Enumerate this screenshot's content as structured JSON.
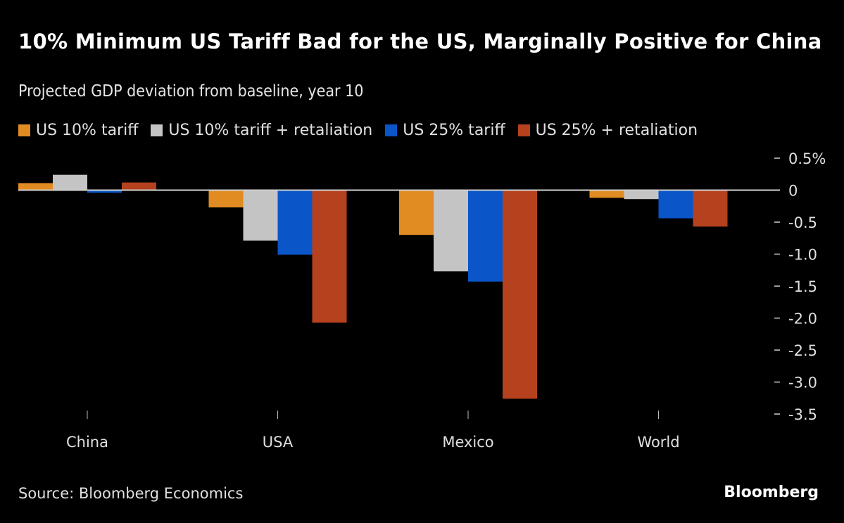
{
  "chart_data": {
    "type": "bar",
    "title": "10% Minimum US Tariff Bad for the US, Marginally Positive for China",
    "subtitle": "Projected GDP deviation from baseline, year 10",
    "categories": [
      "China",
      "USA",
      "Mexico",
      "World"
    ],
    "series": [
      {
        "name": "US 10% tariff",
        "color": "#e08c22",
        "values": [
          0.11,
          -0.27,
          -0.7,
          -0.12
        ]
      },
      {
        "name": "US 10% tariff + retaliation",
        "color": "#c4c4c4",
        "values": [
          0.24,
          -0.79,
          -1.27,
          -0.14
        ]
      },
      {
        "name": "US 25% tariff",
        "color": "#0a55c8",
        "values": [
          -0.04,
          -1.01,
          -1.43,
          -0.44
        ]
      },
      {
        "name": "US 25% + retaliation",
        "color": "#b5411e",
        "values": [
          0.12,
          -2.07,
          -3.26,
          -0.57
        ]
      }
    ],
    "xlabel": "",
    "ylabel": "",
    "ylim": [
      -3.5,
      0.5
    ],
    "yticks": [
      0.5,
      0,
      -0.5,
      -1.0,
      -1.5,
      -2.0,
      -2.5,
      -3.0,
      -3.5
    ],
    "ytick_labels": [
      "0.5%",
      "0",
      "-0.5",
      "-1.0",
      "-1.5",
      "-2.0",
      "-2.5",
      "-3.0",
      "-3.5"
    ],
    "y_axis_position": "right",
    "legend_position": "top-left",
    "grid": false
  },
  "footer": {
    "source": "Source: Bloomberg Economics",
    "brand": "Bloomberg"
  }
}
